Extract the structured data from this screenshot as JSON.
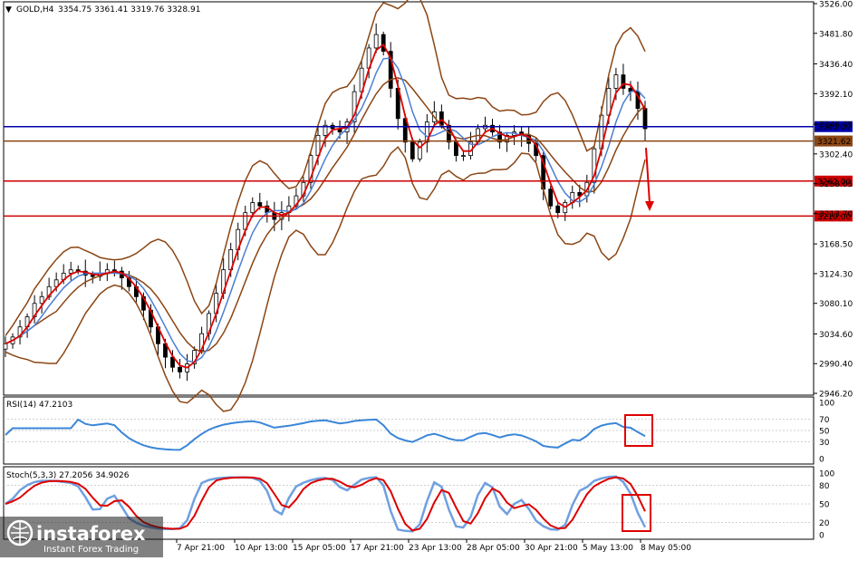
{
  "header": {
    "symbol": "GOLD,H4",
    "ohlc": "3354.75 3361.41 3319.76 3328.91"
  },
  "rsi_header": "RSI(14) 47.2103",
  "stoch_header": "Stoch(5,3,3) 27.2056 34.9026",
  "logo": {
    "brand": "instaforex",
    "tagline": "Instant Forex Trading"
  },
  "colors": {
    "bull": "#000000",
    "bear": "#000000",
    "bollinger": "#8b4513",
    "ma_fast": "#dd0000",
    "ma_slow": "#4a7fd4",
    "resistance": "#0000aa",
    "support": "#cc0000",
    "current": "#8b4513",
    "indicator": "#3a86d8",
    "stoch_main": "#6fa0e0",
    "stoch_signal": "#dd0000"
  },
  "chart_data": [
    {
      "type": "line",
      "name": "price",
      "ylim": [
        2946.2,
        3526.0
      ],
      "y_ticks": [
        "3526.00",
        "3481.80",
        "3436.40",
        "3392.10",
        "3346.75",
        "3302.40",
        "3258.05",
        "3213.70",
        "3168.50",
        "3124.30",
        "3080.10",
        "3034.60",
        "2990.40",
        "2946.20"
      ],
      "x_ticks": [
        "7 Apr 21:00",
        "10 Apr 13:00",
        "15 Apr 05:00",
        "17 Apr 21:00",
        "23 Apr 13:00",
        "28 Apr 05:00",
        "30 Apr 21:00",
        "5 May 13:00",
        "8 May 05:00"
      ],
      "levels": [
        {
          "label": "3343.00",
          "value": 3343.0,
          "kind": "resistance"
        },
        {
          "label": "3321.62",
          "value": 3321.62,
          "kind": "current"
        },
        {
          "label": "3262.00",
          "value": 3262.0,
          "kind": "support"
        },
        {
          "label": "3210.00",
          "value": 3210.0,
          "kind": "support"
        }
      ],
      "close": [
        3020,
        3030,
        3045,
        3060,
        3080,
        3090,
        3105,
        3115,
        3125,
        3130,
        3128,
        3122,
        3120,
        3125,
        3130,
        3128,
        3118,
        3105,
        3090,
        3070,
        3045,
        3020,
        3000,
        2985,
        2978,
        2990,
        3010,
        3035,
        3065,
        3095,
        3130,
        3160,
        3190,
        3215,
        3230,
        3225,
        3215,
        3205,
        3215,
        3225,
        3240,
        3260,
        3300,
        3330,
        3345,
        3340,
        3335,
        3350,
        3395,
        3430,
        3460,
        3480,
        3455,
        3400,
        3355,
        3320,
        3295,
        3320,
        3350,
        3365,
        3345,
        3320,
        3300,
        3300,
        3320,
        3340,
        3345,
        3335,
        3320,
        3330,
        3335,
        3330,
        3318,
        3300,
        3250,
        3225,
        3215,
        3230,
        3245,
        3240,
        3260,
        3310,
        3360,
        3400,
        3420,
        3400,
        3395,
        3370,
        3340
      ]
    },
    {
      "type": "line",
      "name": "RSI",
      "ylim": [
        0,
        100
      ],
      "y_ticks": [
        "100",
        "70",
        "50",
        "30",
        "0"
      ]
    },
    {
      "type": "line",
      "name": "Stochastic",
      "ylim": [
        0,
        100
      ],
      "y_ticks": [
        "100",
        "80",
        "50",
        "20",
        "0"
      ]
    }
  ]
}
